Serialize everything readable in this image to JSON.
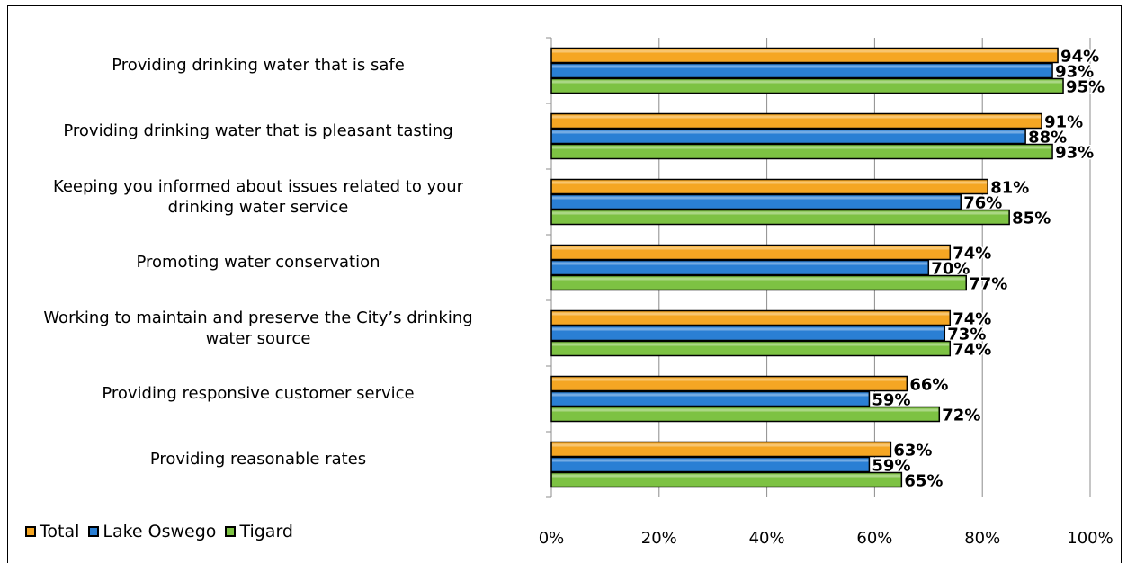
{
  "chart_data": {
    "type": "bar",
    "orientation": "horizontal",
    "title": "",
    "categories": [
      "Providing drinking water that is safe",
      "Providing drinking water that is pleasant tasting",
      "Keeping you informed about issues related to your drinking water service",
      "Promoting water conservation",
      "Working to maintain and preserve the City’s drinking water source",
      "Providing responsive customer service",
      "Providing reasonable rates"
    ],
    "category_lines": [
      [
        "Providing drinking water that is safe"
      ],
      [
        "Providing drinking water that is pleasant tasting"
      ],
      [
        "Keeping you informed about issues related to your",
        "drinking water service"
      ],
      [
        "Promoting water conservation"
      ],
      [
        "Working to maintain and preserve the City’s drinking",
        "water source"
      ],
      [
        "Providing responsive customer service"
      ],
      [
        "Providing reasonable rates"
      ]
    ],
    "series": [
      {
        "name": "Total",
        "color": "#F5A623",
        "values": [
          94,
          91,
          81,
          74,
          74,
          66,
          63
        ]
      },
      {
        "name": "Lake Oswego",
        "color": "#2A7FD4",
        "values": [
          93,
          88,
          76,
          70,
          73,
          59,
          59
        ]
      },
      {
        "name": "Tigard",
        "color": "#7DC243",
        "values": [
          95,
          93,
          85,
          77,
          74,
          72,
          65
        ]
      }
    ],
    "value_suffix": "%",
    "xlim": [
      0,
      100
    ],
    "xticks": [
      "0%",
      "20%",
      "40%",
      "60%",
      "80%",
      "100%"
    ],
    "grid": true,
    "legend": "bottom-left"
  }
}
